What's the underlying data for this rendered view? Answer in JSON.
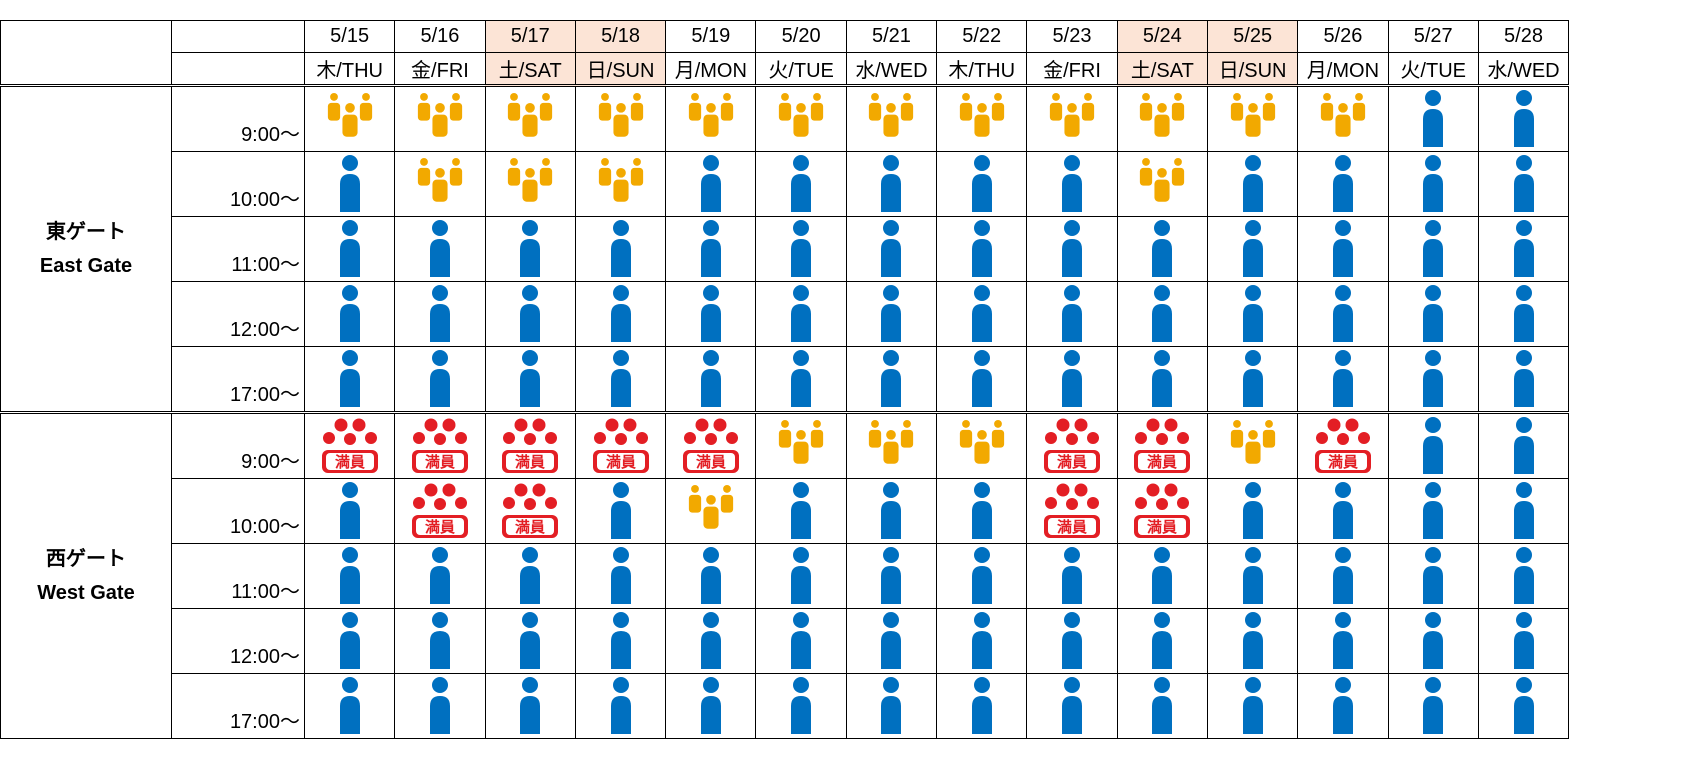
{
  "colors": {
    "low": "#0070c0",
    "medium": "#f2a900",
    "full": "#e31e24",
    "weekend_bg": "#fce4d6"
  },
  "legend_icons": {
    "low": "single-person-icon",
    "medium": "group-icon",
    "full": "full-stamp-icon"
  },
  "header": {
    "dates": [
      {
        "date": "5/15",
        "day": "木/THU",
        "weekend": false
      },
      {
        "date": "5/16",
        "day": "金/FRI",
        "weekend": false
      },
      {
        "date": "5/17",
        "day": "土/SAT",
        "weekend": true
      },
      {
        "date": "5/18",
        "day": "日/SUN",
        "weekend": true
      },
      {
        "date": "5/19",
        "day": "月/MON",
        "weekend": false
      },
      {
        "date": "5/20",
        "day": "火/TUE",
        "weekend": false
      },
      {
        "date": "5/21",
        "day": "水/WED",
        "weekend": false
      },
      {
        "date": "5/22",
        "day": "木/THU",
        "weekend": false
      },
      {
        "date": "5/23",
        "day": "金/FRI",
        "weekend": false
      },
      {
        "date": "5/24",
        "day": "土/SAT",
        "weekend": true
      },
      {
        "date": "5/25",
        "day": "日/SUN",
        "weekend": true
      },
      {
        "date": "5/26",
        "day": "月/MON",
        "weekend": false
      },
      {
        "date": "5/27",
        "day": "火/TUE",
        "weekend": false
      },
      {
        "date": "5/28",
        "day": "水/WED",
        "weekend": false
      }
    ]
  },
  "full_stamp_text": "満員",
  "gates": [
    {
      "name_ja": "東ゲート",
      "name_en": "East Gate",
      "slots": [
        {
          "time": "9:00〜",
          "status": [
            "medium",
            "medium",
            "medium",
            "medium",
            "medium",
            "medium",
            "medium",
            "medium",
            "medium",
            "medium",
            "medium",
            "medium",
            "low",
            "low"
          ]
        },
        {
          "time": "10:00〜",
          "status": [
            "low",
            "medium",
            "medium",
            "medium",
            "low",
            "low",
            "low",
            "low",
            "low",
            "medium",
            "low",
            "low",
            "low",
            "low"
          ]
        },
        {
          "time": "11:00〜",
          "status": [
            "low",
            "low",
            "low",
            "low",
            "low",
            "low",
            "low",
            "low",
            "low",
            "low",
            "low",
            "low",
            "low",
            "low"
          ]
        },
        {
          "time": "12:00〜",
          "status": [
            "low",
            "low",
            "low",
            "low",
            "low",
            "low",
            "low",
            "low",
            "low",
            "low",
            "low",
            "low",
            "low",
            "low"
          ]
        },
        {
          "time": "17:00〜",
          "status": [
            "low",
            "low",
            "low",
            "low",
            "low",
            "low",
            "low",
            "low",
            "low",
            "low",
            "low",
            "low",
            "low",
            "low"
          ]
        }
      ]
    },
    {
      "name_ja": "西ゲート",
      "name_en": "West Gate",
      "slots": [
        {
          "time": "9:00〜",
          "status": [
            "full",
            "full",
            "full",
            "full",
            "full",
            "medium",
            "medium",
            "medium",
            "full",
            "full",
            "medium",
            "full",
            "low",
            "low"
          ]
        },
        {
          "time": "10:00〜",
          "status": [
            "low",
            "full",
            "full",
            "low",
            "medium",
            "low",
            "low",
            "low",
            "full",
            "full",
            "low",
            "low",
            "low",
            "low"
          ]
        },
        {
          "time": "11:00〜",
          "status": [
            "low",
            "low",
            "low",
            "low",
            "low",
            "low",
            "low",
            "low",
            "low",
            "low",
            "low",
            "low",
            "low",
            "low"
          ]
        },
        {
          "time": "12:00〜",
          "status": [
            "low",
            "low",
            "low",
            "low",
            "low",
            "low",
            "low",
            "low",
            "low",
            "low",
            "low",
            "low",
            "low",
            "low"
          ]
        },
        {
          "time": "17:00〜",
          "status": [
            "low",
            "low",
            "low",
            "low",
            "low",
            "low",
            "low",
            "low",
            "low",
            "low",
            "low",
            "low",
            "low",
            "low"
          ]
        }
      ]
    }
  ]
}
